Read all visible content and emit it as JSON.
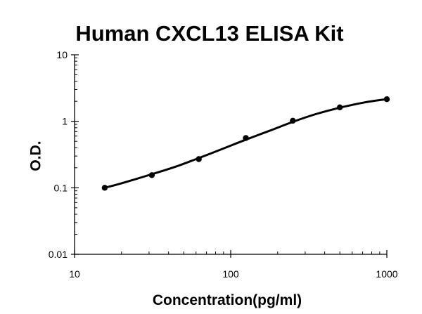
{
  "chart_data": {
    "type": "scatter",
    "title": "Human CXCL13 ELISA Kit",
    "xlabel": "Concentration(pg/ml)",
    "ylabel": "O.D.",
    "x_scale": "log",
    "y_scale": "log",
    "xlim": [
      10,
      1000
    ],
    "ylim": [
      0.01,
      10
    ],
    "x_ticks": [
      "10",
      "100",
      "1000"
    ],
    "y_ticks": [
      "10",
      "1",
      "0.1",
      "0.01"
    ],
    "x_tick_values": [
      10,
      100,
      1000
    ],
    "y_tick_values": [
      10,
      1,
      0.1,
      0.01
    ],
    "grid": false,
    "legend": "none",
    "series": [
      {
        "x": [
          15.6,
          31.25,
          62.5,
          125,
          250,
          500,
          1000
        ],
        "y": [
          0.1,
          0.155,
          0.27,
          0.56,
          1.02,
          1.62,
          2.15
        ]
      }
    ],
    "fit_curve": {
      "x": [
        15.6,
        20,
        31.25,
        45,
        62.5,
        90,
        125,
        180,
        250,
        350,
        500,
        700,
        850,
        1000
      ],
      "y": [
        0.1,
        0.117,
        0.16,
        0.21,
        0.28,
        0.39,
        0.53,
        0.73,
        0.98,
        1.28,
        1.6,
        1.9,
        2.05,
        2.15
      ]
    },
    "colors": {
      "marker": "#000000",
      "line": "#000000",
      "axis": "#000000"
    }
  }
}
